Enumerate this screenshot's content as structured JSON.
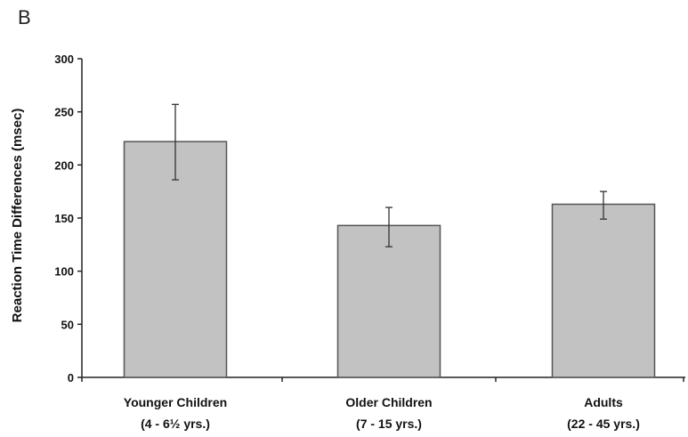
{
  "chart_data": {
    "type": "bar",
    "panel_label": "B",
    "ylabel": "Reaction Time Differences (msec)",
    "ylim": [
      0,
      300
    ],
    "yticks": [
      0,
      50,
      100,
      150,
      200,
      250,
      300
    ],
    "grid": false,
    "categories": [
      {
        "name": "Younger Children",
        "sub": "(4 - 6½ yrs.)"
      },
      {
        "name": "Older Children",
        "sub": "(7 - 15 yrs.)"
      },
      {
        "name": "Adults",
        "sub": "(22 - 45 yrs.)"
      }
    ],
    "values": [
      222,
      143,
      163
    ],
    "error_low": [
      186,
      123,
      149
    ],
    "error_high": [
      257,
      160,
      175
    ],
    "colors": {
      "bar_fill": "#c2c2c2",
      "bar_stroke": "#555555",
      "axis": "#222222",
      "text": "#111111"
    }
  }
}
